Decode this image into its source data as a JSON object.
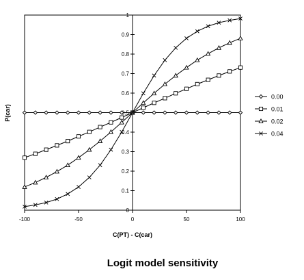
{
  "chart_data": {
    "type": "line",
    "title": "Logit model sensitivity",
    "xlabel": "C(PT) - C(car)",
    "ylabel": "P(car)",
    "xlim": [
      -100,
      100
    ],
    "ylim": [
      0,
      1
    ],
    "x_ticks": [
      "-100",
      "-50",
      "0",
      "50",
      "100"
    ],
    "y_ticks": [
      "0",
      "0.1",
      "0.2",
      "0.3",
      "0.4",
      "0.5",
      "0.6",
      "0.7",
      "0.8",
      "0.9",
      "1"
    ],
    "grid": false,
    "legend_position": "right",
    "x": [
      -100,
      -90,
      -80,
      -70,
      -60,
      -50,
      -40,
      -30,
      -20,
      -10,
      0,
      10,
      20,
      30,
      40,
      50,
      60,
      70,
      80,
      90,
      100
    ],
    "series": [
      {
        "name": "0.00",
        "marker": "diamond",
        "values": [
          0.5,
          0.5,
          0.5,
          0.5,
          0.5,
          0.5,
          0.5,
          0.5,
          0.5,
          0.5,
          0.5,
          0.5,
          0.5,
          0.5,
          0.5,
          0.5,
          0.5,
          0.5,
          0.5,
          0.5,
          0.5
        ]
      },
      {
        "name": "0.01",
        "marker": "square",
        "values": [
          0.269,
          0.289,
          0.31,
          0.332,
          0.354,
          0.378,
          0.401,
          0.426,
          0.45,
          0.475,
          0.5,
          0.525,
          0.55,
          0.574,
          0.599,
          0.622,
          0.646,
          0.668,
          0.69,
          0.711,
          0.731
        ]
      },
      {
        "name": "0.02",
        "marker": "triangle",
        "values": [
          0.119,
          0.142,
          0.168,
          0.198,
          0.231,
          0.269,
          0.31,
          0.354,
          0.401,
          0.45,
          0.5,
          0.55,
          0.599,
          0.646,
          0.69,
          0.731,
          0.769,
          0.802,
          0.832,
          0.858,
          0.881
        ]
      },
      {
        "name": "0.04",
        "marker": "x",
        "values": [
          0.018,
          0.027,
          0.039,
          0.057,
          0.083,
          0.119,
          0.168,
          0.231,
          0.31,
          0.401,
          0.5,
          0.599,
          0.69,
          0.769,
          0.832,
          0.881,
          0.917,
          0.943,
          0.961,
          0.973,
          0.982
        ]
      }
    ]
  }
}
